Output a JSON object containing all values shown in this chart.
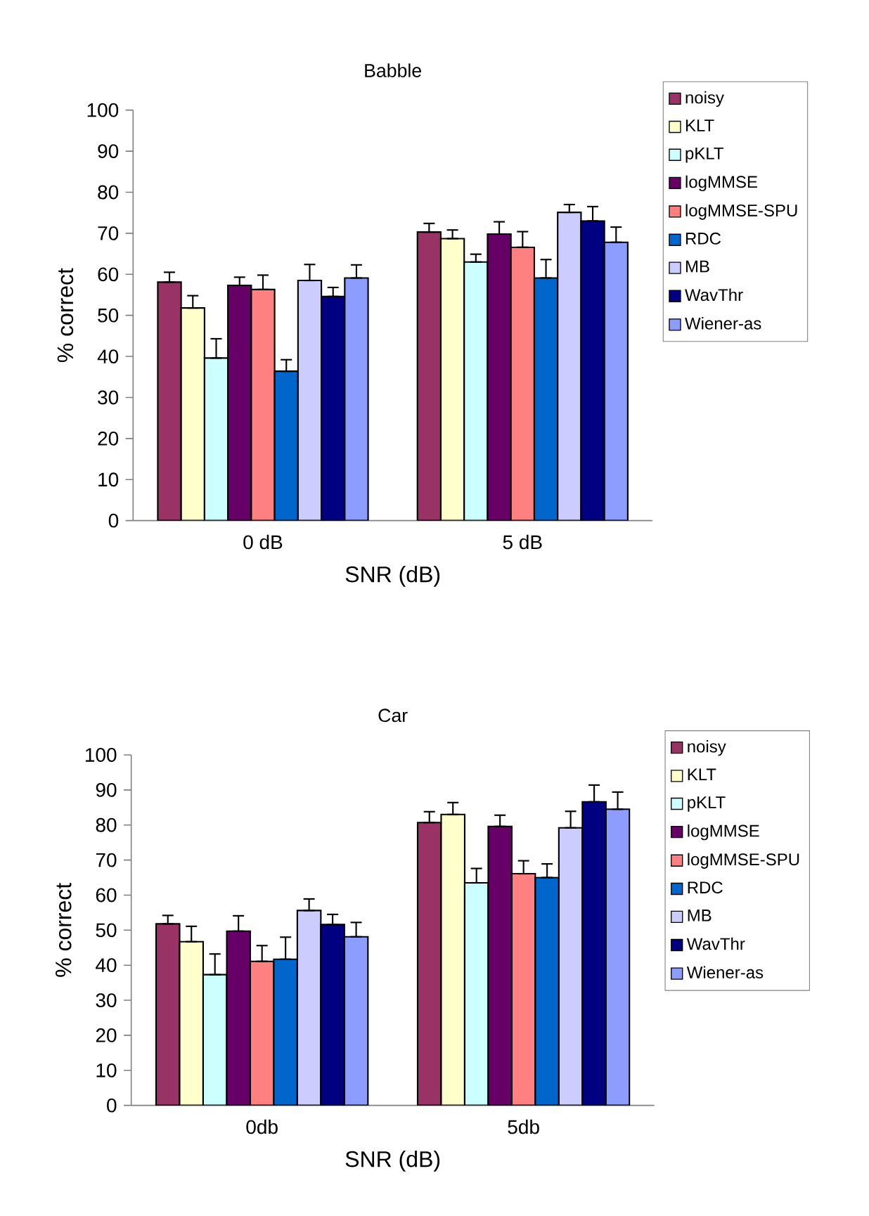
{
  "chart_data": [
    {
      "type": "bar",
      "title": "Babble",
      "xlabel": "SNR (dB)",
      "ylabel": "% correct",
      "categories": [
        "0 dB",
        "5 dB"
      ],
      "ylim": [
        0,
        100
      ],
      "yticks": [
        0,
        10,
        20,
        30,
        40,
        50,
        60,
        70,
        80,
        90,
        100
      ],
      "grid": false,
      "legend": "right",
      "series": [
        {
          "name": "noisy",
          "color": "#993366",
          "values": [
            58.1,
            70.3
          ],
          "errors": [
            [
              58.1,
              60.5
            ],
            [
              70.3,
              72.4
            ]
          ]
        },
        {
          "name": "KLT",
          "color": "#ffffcc",
          "values": [
            51.8,
            68.7
          ],
          "errors": [
            [
              51.8,
              54.8
            ],
            [
              68.7,
              70.8
            ]
          ]
        },
        {
          "name": "pKLT",
          "color": "#ccffff",
          "values": [
            39.6,
            63.0
          ],
          "errors": [
            [
              39.6,
              44.3
            ],
            [
              63.0,
              64.9
            ]
          ]
        },
        {
          "name": "logMMSE",
          "color": "#660066",
          "values": [
            57.3,
            69.8
          ],
          "errors": [
            [
              57.3,
              59.3
            ],
            [
              69.8,
              72.8
            ]
          ]
        },
        {
          "name": "logMMSE-SPU",
          "color": "#ff8080",
          "values": [
            56.3,
            66.6
          ],
          "errors": [
            [
              56.3,
              59.8
            ],
            [
              66.6,
              70.4
            ]
          ]
        },
        {
          "name": "RDC",
          "color": "#0066cc",
          "values": [
            36.4,
            59.1
          ],
          "errors": [
            [
              36.4,
              39.2
            ],
            [
              59.1,
              63.6
            ]
          ]
        },
        {
          "name": "MB",
          "color": "#ccccff",
          "values": [
            58.5,
            75.1
          ],
          "errors": [
            [
              58.5,
              62.4
            ],
            [
              75.1,
              77.0
            ]
          ]
        },
        {
          "name": "WavThr",
          "color": "#000080",
          "values": [
            54.6,
            73.0
          ],
          "errors": [
            [
              54.6,
              56.8
            ],
            [
              73.0,
              76.5
            ]
          ]
        },
        {
          "name": "Wiener-as",
          "color": "#8c9cff",
          "values": [
            59.1,
            67.8
          ],
          "errors": [
            [
              59.1,
              62.3
            ],
            [
              67.8,
              71.5
            ]
          ]
        }
      ]
    },
    {
      "type": "bar",
      "title": "Car",
      "xlabel": "SNR (dB)",
      "ylabel": "% correct",
      "categories": [
        "0db",
        "5db"
      ],
      "ylim": [
        0,
        100
      ],
      "yticks": [
        0,
        10,
        20,
        30,
        40,
        50,
        60,
        70,
        80,
        90,
        100
      ],
      "grid": false,
      "legend": "right",
      "series": [
        {
          "name": "noisy",
          "color": "#993366",
          "values": [
            51.8,
            80.7
          ],
          "errors": [
            [
              51.8,
              54.2
            ],
            [
              80.7,
              83.8
            ]
          ]
        },
        {
          "name": "KLT",
          "color": "#ffffcc",
          "values": [
            46.7,
            83.0
          ],
          "errors": [
            [
              46.7,
              51.1
            ],
            [
              83.0,
              86.4
            ]
          ]
        },
        {
          "name": "pKLT",
          "color": "#ccffff",
          "values": [
            37.3,
            63.5
          ],
          "errors": [
            [
              37.3,
              43.2
            ],
            [
              63.5,
              67.6
            ]
          ]
        },
        {
          "name": "logMMSE",
          "color": "#660066",
          "values": [
            49.7,
            79.6
          ],
          "errors": [
            [
              49.7,
              54.1
            ],
            [
              79.6,
              82.8
            ]
          ]
        },
        {
          "name": "logMMSE-SPU",
          "color": "#ff8080",
          "values": [
            41.1,
            66.1
          ],
          "errors": [
            [
              41.1,
              45.6
            ],
            [
              66.1,
              69.8
            ]
          ]
        },
        {
          "name": "RDC",
          "color": "#0066cc",
          "values": [
            41.7,
            65.0
          ],
          "errors": [
            [
              41.7,
              48.0
            ],
            [
              65.0,
              68.9
            ]
          ]
        },
        {
          "name": "MB",
          "color": "#ccccff",
          "values": [
            55.6,
            79.2
          ],
          "errors": [
            [
              55.6,
              58.9
            ],
            [
              79.2,
              83.9
            ]
          ]
        },
        {
          "name": "WavThr",
          "color": "#000080",
          "values": [
            51.6,
            86.6
          ],
          "errors": [
            [
              51.6,
              54.5
            ],
            [
              86.6,
              91.4
            ]
          ]
        },
        {
          "name": "Wiener-as",
          "color": "#8c9cff",
          "values": [
            48.1,
            84.5
          ],
          "errors": [
            [
              48.1,
              52.2
            ],
            [
              84.5,
              89.4
            ]
          ]
        }
      ]
    }
  ]
}
